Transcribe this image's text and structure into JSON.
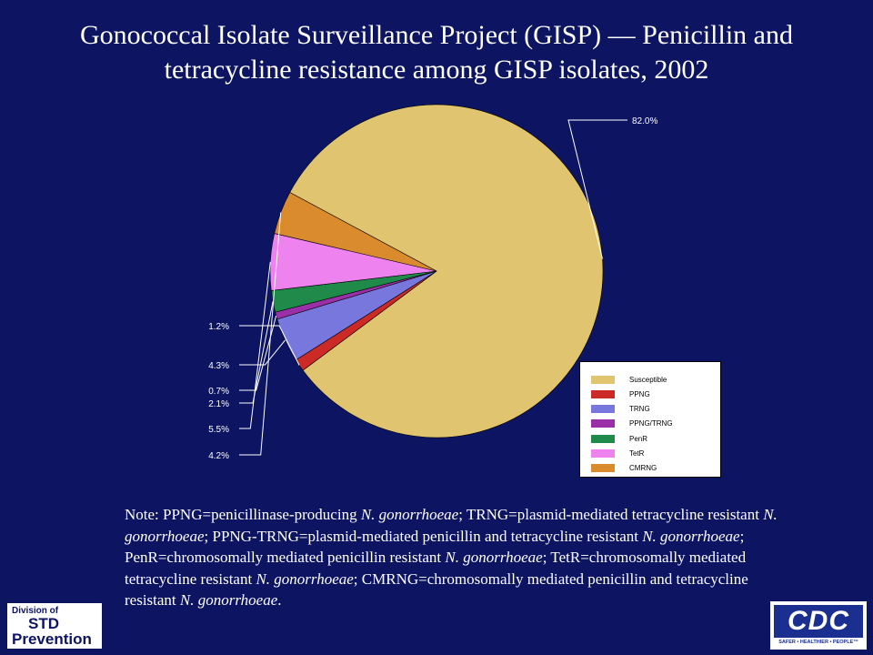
{
  "title": {
    "line1": "Gonococcal Isolate Surveillance Project (GISP) — Penicillin and",
    "line2": "tetracycline resistance among GISP isolates, 2002"
  },
  "chart_data": {
    "type": "pie",
    "title": "Gonococcal Isolate Surveillance Project (GISP) — Penicillin and tetracycline resistance among GISP isolates, 2002",
    "legend_position": "bottom-right",
    "slices": [
      {
        "name": "Susceptible",
        "value": 82.0,
        "label": "82.0%",
        "color": "#e0c46f"
      },
      {
        "name": "PPNG",
        "value": 1.2,
        "label": "1.2%",
        "color": "#cc2a26"
      },
      {
        "name": "TRNG",
        "value": 4.3,
        "label": "4.3%",
        "color": "#7777dd"
      },
      {
        "name": "PPNG/TRNG",
        "value": 0.7,
        "label": "0.7%",
        "color": "#9a2fa8"
      },
      {
        "name": "PenR",
        "value": 2.1,
        "label": "2.1%",
        "color": "#1f8a4a"
      },
      {
        "name": "TetR",
        "value": 5.5,
        "label": "5.5%",
        "color": "#ee82ee"
      },
      {
        "name": "CMRNG",
        "value": 4.2,
        "label": "4.2%",
        "color": "#d98b2e"
      }
    ]
  },
  "note": {
    "s1": "Note: PPNG=penicillinase-producing ",
    "org": "N. gonorrhoeae",
    "s2": "; TRNG=plasmid-mediated tetracycline resistant ",
    "s3": "; PPNG-TRNG=plasmid-mediated penicillin and tetracycline resistant ",
    "s4": "; PenR=chromosomally mediated penicillin resistant ",
    "s5": "; TetR=chromosomally mediated tetracycline resistant ",
    "s6": "; CMRNG=chromosomally mediated penicillin and tetracycline resistant ",
    "s7": "."
  },
  "logos": {
    "std_line1": "Division of",
    "std_line2": "STD",
    "std_line3": "Prevention",
    "cdc_text": "CDC",
    "cdc_tagline": "SAFER • HEALTHIER • PEOPLE™"
  },
  "colors": {
    "background": "#0d1461",
    "label_lines": "#ffffff"
  }
}
